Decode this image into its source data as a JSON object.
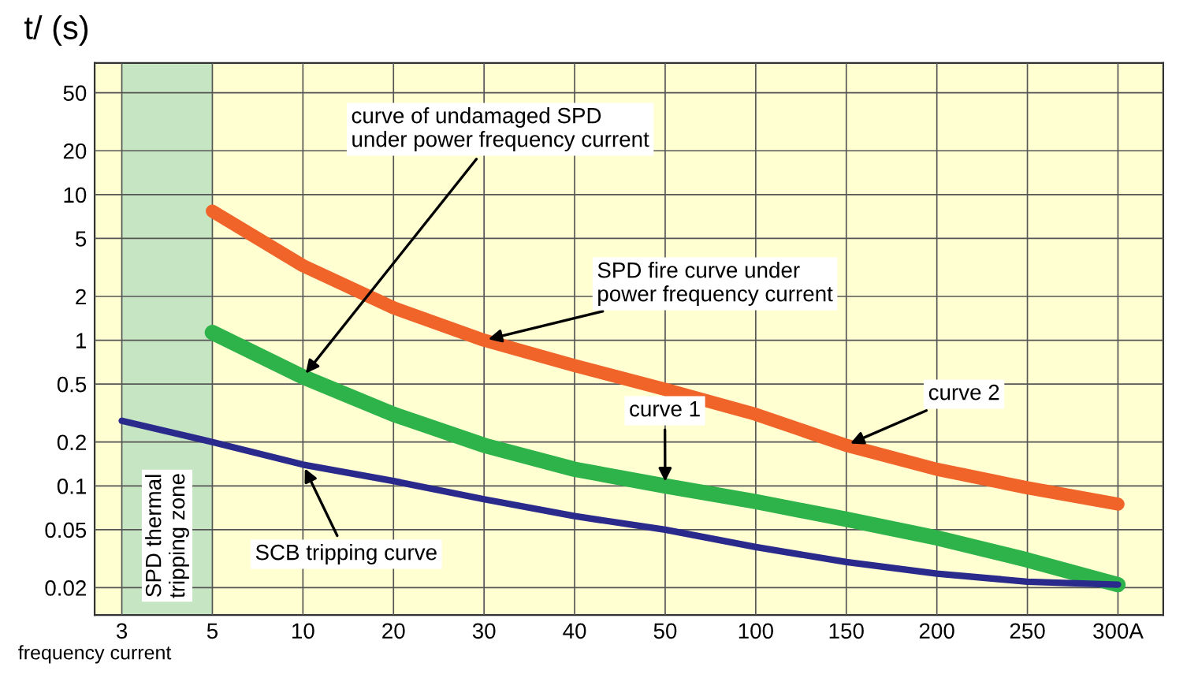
{
  "chart_data": {
    "type": "line",
    "ylabel": "t/ (s)",
    "xlabel": "frequency current",
    "categories": [
      "3",
      "5",
      "10",
      "20",
      "30",
      "40",
      "50",
      "100",
      "150",
      "200",
      "250",
      "300A"
    ],
    "log": "y",
    "ylim": [
      0.013,
      80
    ],
    "yticks": [
      0.02,
      0.05,
      0.1,
      0.2,
      0.5,
      1,
      2,
      5,
      10,
      20,
      50
    ],
    "grid": true,
    "marker": "none",
    "line_style": "solid",
    "bands": [
      {
        "axis": "x",
        "from": "3",
        "to": "5",
        "label": "SPD thermal\ntripping zone",
        "color": "#c6e5c2"
      }
    ],
    "series": [
      {
        "color": "#f0642a",
        "values": [
          null,
          7.7,
          3.25,
          1.67,
          1.0,
          0.67,
          0.46,
          0.31,
          0.19,
          0.13,
          0.097,
          0.075
        ]
      },
      {
        "color": "#2db34a",
        "values": [
          null,
          1.13,
          0.56,
          0.31,
          0.19,
          0.13,
          0.1,
          0.078,
          0.059,
          0.044,
          0.031,
          0.021
        ]
      },
      {
        "color": "#2a2a8c",
        "values": [
          0.28,
          0.2,
          0.14,
          0.108,
          0.081,
          0.062,
          0.05,
          0.038,
          0.03,
          0.025,
          0.022,
          0.021
        ]
      }
    ],
    "annotations": [
      {
        "text": "curve of undamaged SPD\nunder power frequency current",
        "x": "10",
        "y": 0.56
      },
      {
        "text": "SPD fire curve under\npower frequency current",
        "x": "30",
        "y": 1.0
      },
      {
        "text": "curve 1",
        "x": "50",
        "y": 0.1
      },
      {
        "text": "curve 2",
        "x": "150",
        "y": 0.19
      },
      {
        "text": "SCB tripping curve",
        "x": "10",
        "y": 0.14
      }
    ]
  }
}
